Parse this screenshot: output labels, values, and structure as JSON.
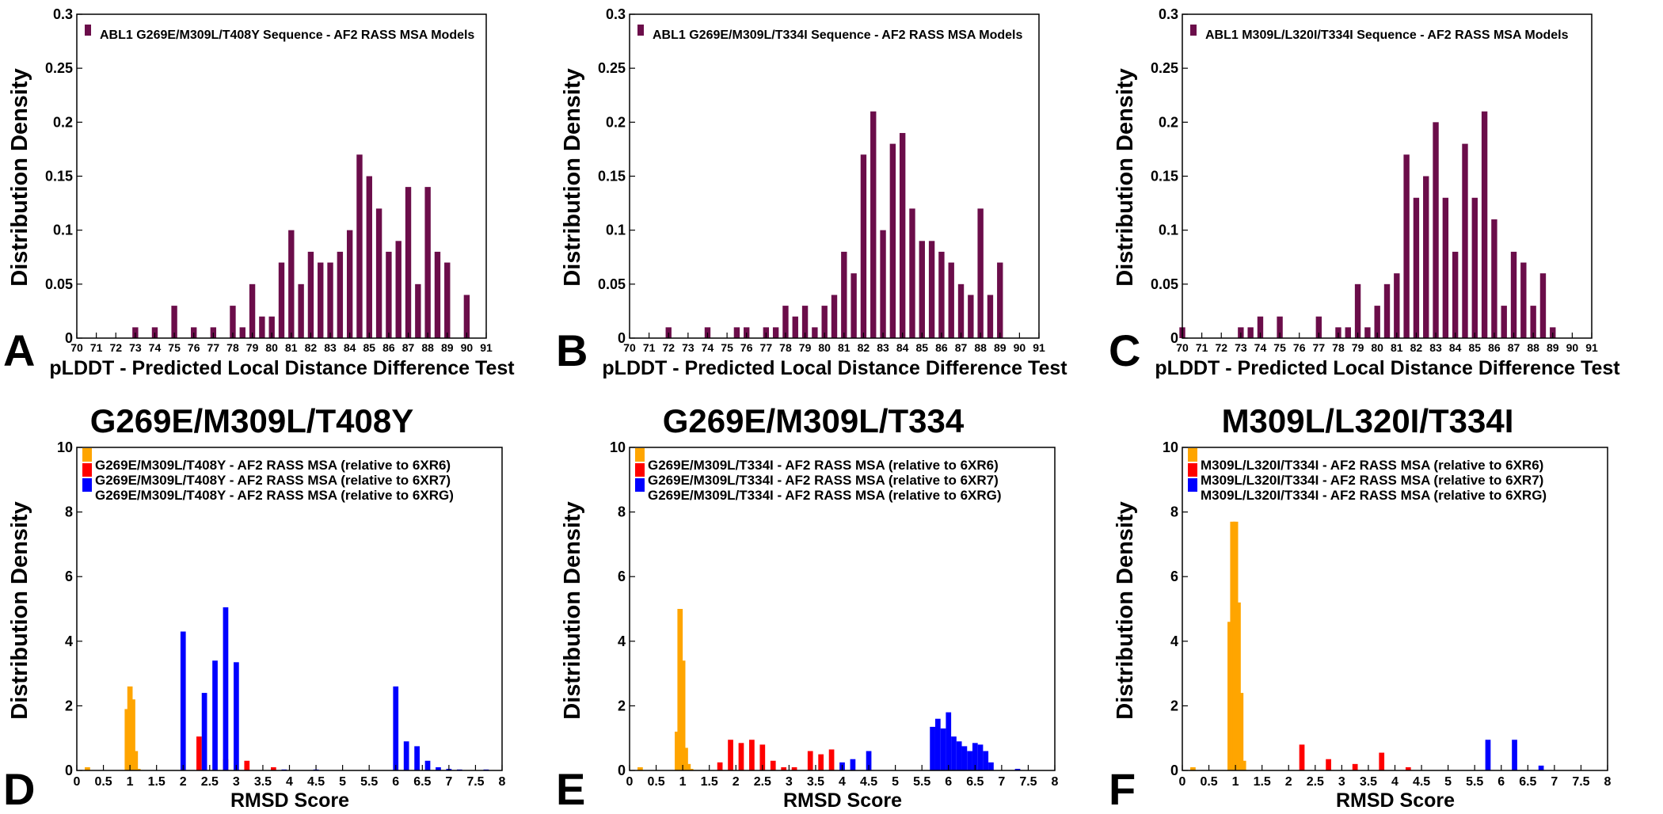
{
  "figure": {
    "row_titles": [
      "G269E/M309L/T408Y",
      "G269E/M309L/T334",
      "M309L/L320I/T334I"
    ]
  },
  "colors": {
    "plddt": "#6b0d4a",
    "ref_6XR6": "#ffa500",
    "ref_6XR7": "#ff0000",
    "ref_6XRG": "#0000ff"
  },
  "chart_data": [
    {
      "panel": "A",
      "type": "bar",
      "title": "",
      "xlabel": "pLDDT - Predicted Local Distance Difference Test",
      "ylabel": "Distribution Density",
      "xlim": [
        70,
        91
      ],
      "ylim": [
        0,
        0.3
      ],
      "xticks": [
        70,
        71,
        72,
        73,
        74,
        75,
        76,
        77,
        78,
        79,
        80,
        81,
        82,
        83,
        84,
        85,
        86,
        87,
        88,
        89,
        90,
        91
      ],
      "yticks": [
        0,
        0.05,
        0.1,
        0.15,
        0.2,
        0.25,
        0.3
      ],
      "bar_width": 0.3,
      "series": [
        {
          "name": "ABL1 G269E/M309L/T408Y Sequence - AF2 RASS MSA Models",
          "color": "#6b0d4a",
          "x": [
            73,
            74,
            75,
            76,
            77,
            78,
            78.5,
            79,
            79.5,
            80,
            80.5,
            81,
            81.5,
            82,
            82.5,
            83,
            83.5,
            84,
            84.5,
            85,
            85.5,
            86,
            86.5,
            87,
            87.5,
            88,
            88.5,
            89,
            90
          ],
          "values": [
            0.01,
            0.01,
            0.03,
            0.01,
            0.01,
            0.03,
            0.01,
            0.05,
            0.02,
            0.02,
            0.07,
            0.1,
            0.05,
            0.08,
            0.07,
            0.07,
            0.08,
            0.1,
            0.17,
            0.15,
            0.12,
            0.08,
            0.09,
            0.14,
            0.05,
            0.14,
            0.08,
            0.07,
            0.04
          ]
        }
      ]
    },
    {
      "panel": "B",
      "type": "bar",
      "title": "",
      "xlabel": "pLDDT - Predicted Local Distance Difference Test",
      "ylabel": "Distribution Density",
      "xlim": [
        70,
        91
      ],
      "ylim": [
        0,
        0.3
      ],
      "xticks": [
        70,
        71,
        72,
        73,
        74,
        75,
        76,
        77,
        78,
        79,
        80,
        81,
        82,
        83,
        84,
        85,
        86,
        87,
        88,
        89,
        90,
        91
      ],
      "yticks": [
        0,
        0.05,
        0.1,
        0.15,
        0.2,
        0.25,
        0.3
      ],
      "bar_width": 0.3,
      "series": [
        {
          "name": "ABL1 G269E/M309L/T334I Sequence - AF2 RASS MSA Models",
          "color": "#6b0d4a",
          "x": [
            72,
            74,
            75.5,
            76,
            77,
            77.5,
            78,
            78.5,
            79,
            79.5,
            80,
            80.5,
            81,
            81.5,
            82,
            82.5,
            83,
            83.5,
            84,
            84.5,
            85,
            85.5,
            86,
            86.5,
            87,
            87.5,
            88,
            88.5,
            89
          ],
          "values": [
            0.01,
            0.01,
            0.01,
            0.01,
            0.01,
            0.01,
            0.03,
            0.02,
            0.03,
            0.01,
            0.03,
            0.04,
            0.08,
            0.06,
            0.17,
            0.21,
            0.1,
            0.18,
            0.19,
            0.12,
            0.09,
            0.09,
            0.08,
            0.07,
            0.05,
            0.04,
            0.12,
            0.04,
            0.07
          ]
        }
      ]
    },
    {
      "panel": "C",
      "type": "bar",
      "title": "",
      "xlabel": "pLDDT - Predicted Local Distance Difference Test",
      "ylabel": "Distribution Density",
      "xlim": [
        70,
        91
      ],
      "ylim": [
        0,
        0.3
      ],
      "xticks": [
        70,
        71,
        72,
        73,
        74,
        75,
        76,
        77,
        78,
        79,
        80,
        81,
        82,
        83,
        84,
        85,
        86,
        87,
        88,
        89,
        90,
        91
      ],
      "yticks": [
        0,
        0.05,
        0.1,
        0.15,
        0.2,
        0.25,
        0.3
      ],
      "bar_width": 0.3,
      "series": [
        {
          "name": "ABL1 M309L/L320I/T334I Sequence - AF2 RASS MSA Models",
          "color": "#6b0d4a",
          "x": [
            70,
            73,
            73.5,
            74,
            75,
            77,
            78,
            78.5,
            79,
            79.5,
            80,
            80.5,
            81,
            81.5,
            82,
            82.5,
            83,
            83.5,
            84,
            84.5,
            85,
            85.5,
            86,
            86.5,
            87,
            87.5,
            88,
            88.5,
            89
          ],
          "values": [
            0.01,
            0.01,
            0.01,
            0.02,
            0.02,
            0.02,
            0.01,
            0.01,
            0.05,
            0.01,
            0.03,
            0.05,
            0.06,
            0.17,
            0.13,
            0.15,
            0.2,
            0.13,
            0.08,
            0.18,
            0.13,
            0.21,
            0.11,
            0.03,
            0.08,
            0.07,
            0.03,
            0.06,
            0.01
          ]
        }
      ]
    },
    {
      "panel": "D",
      "type": "bar",
      "title": "G269E/M309L/T408Y",
      "xlabel": "RMSD Score",
      "ylabel": "Distribution Density",
      "xlim": [
        0,
        8
      ],
      "ylim": [
        0,
        10
      ],
      "xticks": [
        0,
        0.5,
        1,
        1.5,
        2,
        2.5,
        3,
        3.5,
        4,
        4.5,
        5,
        5.5,
        6,
        6.5,
        7,
        7.5,
        8
      ],
      "yticks": [
        0,
        2,
        4,
        6,
        8,
        10
      ],
      "bar_width": 0.1,
      "series": [
        {
          "name": "G269E/M309L/T408Y - AF2 RASS MSA (relative to 6XR6)",
          "color": "#ffa500",
          "x": [
            0.2,
            0.95,
            1.0,
            1.05,
            1.1,
            1.15
          ],
          "values": [
            0.1,
            1.9,
            2.6,
            2.2,
            0.6,
            0.05
          ]
        },
        {
          "name": "G269E/M309L/T408Y - AF2 RASS MSA (relative to 6XR7)",
          "color": "#ff0000",
          "x": [
            2.3,
            2.8,
            3.2,
            3.7
          ],
          "values": [
            1.05,
            0.35,
            0.3,
            0.1
          ]
        },
        {
          "name": "G269E/M309L/T408Y - AF2 RASS MSA (relative to 6XRG)",
          "color": "#0000ff",
          "x": [
            2.0,
            2.4,
            2.6,
            2.8,
            3.0,
            3.9,
            4.5,
            6.0,
            6.2,
            6.4,
            6.6,
            6.8,
            7.0,
            7.2,
            7.7
          ],
          "values": [
            4.3,
            2.4,
            3.4,
            5.05,
            3.35,
            0.03,
            0.03,
            2.6,
            0.9,
            0.75,
            0.3,
            0.1,
            0.05,
            0.03,
            0.03
          ]
        }
      ]
    },
    {
      "panel": "E",
      "type": "bar",
      "title": "G269E/M309L/T334",
      "xlabel": "RMSD Score",
      "ylabel": "Distribution Density",
      "xlim": [
        0,
        8
      ],
      "ylim": [
        0,
        10
      ],
      "xticks": [
        0,
        0.5,
        1,
        1.5,
        2,
        2.5,
        3,
        3.5,
        4,
        4.5,
        5,
        5.5,
        6,
        6.5,
        7,
        7.5,
        8
      ],
      "yticks": [
        0,
        2,
        4,
        6,
        8,
        10
      ],
      "bar_width": 0.1,
      "series": [
        {
          "name": "G269E/M309L/T334I - AF2 RASS MSA (relative to 6XR6)",
          "color": "#ffa500",
          "x": [
            0.2,
            0.9,
            0.95,
            1.0,
            1.05,
            1.1,
            1.15
          ],
          "values": [
            0.1,
            1.2,
            5.0,
            3.4,
            0.7,
            0.2,
            0.05
          ]
        },
        {
          "name": "G269E/M309L/T334I - AF2 RASS MSA (relative to 6XR7)",
          "color": "#ff0000",
          "x": [
            1.7,
            1.9,
            2.1,
            2.3,
            2.5,
            2.7,
            2.9,
            3.1,
            3.4,
            3.6,
            3.8
          ],
          "values": [
            0.25,
            0.95,
            0.85,
            0.95,
            0.8,
            0.3,
            0.1,
            0.1,
            0.6,
            0.5,
            0.65
          ]
        },
        {
          "name": "G269E/M309L/T334I - AF2 RASS MSA (relative to 6XRG)",
          "color": "#0000ff",
          "x": [
            4.0,
            4.2,
            4.5,
            5.7,
            5.8,
            5.9,
            6.0,
            6.1,
            6.2,
            6.3,
            6.4,
            6.5,
            6.6,
            6.7,
            6.8,
            7.3
          ],
          "values": [
            0.25,
            0.35,
            0.6,
            1.35,
            1.6,
            1.3,
            1.8,
            1.05,
            0.9,
            0.75,
            0.6,
            0.85,
            0.8,
            0.6,
            0.25,
            0.05
          ]
        }
      ]
    },
    {
      "panel": "F",
      "type": "bar",
      "title": "M309L/L320I/T334I",
      "xlabel": "RMSD Score",
      "ylabel": "Distribution Density",
      "xlim": [
        0,
        8
      ],
      "ylim": [
        0,
        10
      ],
      "xticks": [
        0,
        0.5,
        1,
        1.5,
        2,
        2.5,
        3,
        3.5,
        4,
        4.5,
        5,
        5.5,
        6,
        6.5,
        7,
        7.5,
        8
      ],
      "yticks": [
        0,
        2,
        4,
        6,
        8,
        10
      ],
      "bar_width": 0.1,
      "series": [
        {
          "name": "M309L/L320I/T334I - AF2 RASS MSA (relative to 6XR6)",
          "color": "#ffa500",
          "x": [
            0.2,
            0.9,
            0.95,
            1.0,
            1.05,
            1.1,
            1.15
          ],
          "values": [
            0.1,
            4.6,
            7.7,
            7.7,
            5.2,
            2.4,
            0.3
          ]
        },
        {
          "name": "M309L/L320I/T334I - AF2 RASS MSA (relative to 6XR7)",
          "color": "#ff0000",
          "x": [
            2.25,
            2.75,
            3.25,
            3.75,
            4.25
          ],
          "values": [
            0.8,
            0.35,
            0.2,
            0.55,
            0.1
          ]
        },
        {
          "name": "M309L/L320I/T334I - AF2 RASS MSA (relative to 6XRG)",
          "color": "#0000ff",
          "x": [
            5.75,
            6.25,
            6.75
          ],
          "values": [
            0.95,
            0.95,
            0.15
          ]
        }
      ]
    }
  ]
}
